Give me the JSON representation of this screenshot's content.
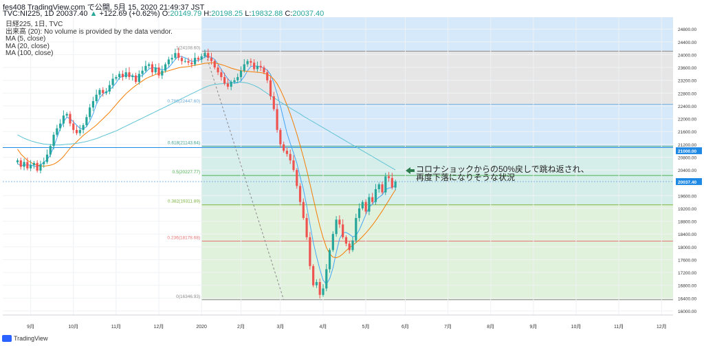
{
  "header": {
    "publish_line": "fes408 TradingView.com で公開, 5月 15, 2020 21:49:37 JST",
    "symbol": "TVC:NI225, 1D",
    "last": "20037.40",
    "change_arrow": "▲",
    "change": "+122.69 (+0.62%)",
    "o_label": "O:",
    "o": "20149.79",
    "h_label": "H:",
    "h": "20198.25",
    "l_label": "L:",
    "l": "19832.88",
    "c_label": "C:",
    "c": "20037.40"
  },
  "legend": [
    "日経225, 1日, TVC",
    "出来高 (20): No volume is provided by the data vendor.",
    "MA (5, close)",
    "MA (20, close)",
    "MA (100, close)"
  ],
  "annotation": {
    "line1": "コロナショックからの50%戻しで跳ね返され、",
    "line2": "再度下落になりそうな状況",
    "arrow_color": "#2e7d4f"
  },
  "footer": {
    "brand": "TradingView"
  },
  "colors": {
    "up": "#26a69a",
    "down": "#ef5350",
    "ma5": "#42a5f5",
    "ma20": "#f57c00",
    "ma100": "#5fc4d4",
    "zone_blue": "#d6e9fb",
    "zone_gray": "#e6e6e6",
    "zone_teal": "#d5eeea",
    "zone_green": "#e1f2dc",
    "zone_red": "#f9d6d6"
  },
  "chart_data": {
    "type": "candlestick",
    "y_ticks": [
      24800,
      24400,
      24000,
      23600,
      23200,
      22800,
      22400,
      22000,
      21600,
      21200,
      20800,
      20400,
      19600,
      19200,
      18800,
      18400,
      18000,
      17600,
      17200,
      16800,
      16400,
      16000
    ],
    "ylim": [
      15870,
      25170
    ],
    "x_ticks": [
      {
        "label": "9月",
        "t": 4
      },
      {
        "label": "10月",
        "t": 17
      },
      {
        "label": "11月",
        "t": 30
      },
      {
        "label": "12月",
        "t": 43
      },
      {
        "label": "2020",
        "t": 56
      },
      {
        "label": "2月",
        "t": 68
      },
      {
        "label": "3月",
        "t": 80
      },
      {
        "label": "4月",
        "t": 93
      },
      {
        "label": "5月",
        "t": 106
      },
      {
        "label": "6月",
        "t": 118
      },
      {
        "label": "7月",
        "t": 131
      },
      {
        "label": "8月",
        "t": 144
      },
      {
        "label": "9月",
        "t": 157
      },
      {
        "label": "10月",
        "t": 170
      },
      {
        "label": "11月",
        "t": 183
      },
      {
        "label": "12月",
        "t": 196
      }
    ],
    "price_tags": [
      {
        "label": "21000.00",
        "value": 21000,
        "color": "#1e88e5"
      },
      {
        "label": "20037.40",
        "value": 20037.4,
        "color": "#1e88e5"
      }
    ],
    "h_levels": [
      21100,
      20037.4
    ],
    "fibonacci": [
      {
        "ratio": "1",
        "label": "1(24108.60)",
        "value": 24108.6
      },
      {
        "ratio": "0.786",
        "label": "0.786(22447.60)",
        "value": 22447.6
      },
      {
        "ratio": "0.618",
        "label": "0.618(21143.64)",
        "value": 21143.64
      },
      {
        "ratio": "0.5",
        "label": "0.5(20227.77)",
        "value": 20227.77
      },
      {
        "ratio": "0.382",
        "label": "0.382(19311.89)",
        "value": 19311.89
      },
      {
        "ratio": "0.236",
        "label": "0.236(18178.68)",
        "value": 18178.68
      },
      {
        "ratio": "0",
        "label": "0(16346.93)",
        "value": 16346.93
      }
    ],
    "fib_range": {
      "t_start": 56,
      "t_end": 196
    },
    "fib_trend": {
      "t1": 57,
      "v1": 24108.6,
      "t2": 81,
      "v2": 16346.93
    },
    "series": [
      {
        "name": "日経225 close",
        "values": [
          20700,
          20500,
          20650,
          20450,
          20550,
          20620,
          20380,
          20580,
          20650,
          20880,
          21150,
          21500,
          21700,
          21850,
          22100,
          22150,
          21850,
          21650,
          21550,
          21650,
          21800,
          22050,
          22350,
          22550,
          22750,
          22900,
          22800,
          22850,
          23050,
          23250,
          23300,
          23400,
          23300,
          23450,
          23300,
          23350,
          23150,
          23400,
          23500,
          23650,
          23700,
          23450,
          23600,
          23350,
          23500,
          23700,
          23850,
          23900,
          24050,
          23900,
          23800,
          23800,
          23750,
          23700,
          23900,
          23850,
          23950,
          24050,
          23900,
          23800,
          23600,
          23450,
          23300,
          23100,
          23000,
          23150,
          23200,
          23300,
          23500,
          23700,
          23800,
          23750,
          23550,
          23650,
          23600,
          23450,
          23200,
          22700,
          22300,
          21650,
          21200,
          21000,
          20900,
          20700,
          20400,
          19900,
          19400,
          18900,
          18300,
          17400,
          16800,
          16900,
          16500,
          16700,
          17300,
          17900,
          18400,
          18850,
          18700,
          18300,
          18100,
          17900,
          18200,
          18900,
          19200,
          19400,
          19100,
          19550,
          19400,
          19800,
          19950,
          19700,
          20200,
          20150,
          19850,
          20037.4
        ]
      },
      {
        "name": "MA (5, close)",
        "values": [
          20600,
          20530,
          20560,
          20550,
          20560,
          20520,
          20500,
          20550,
          20640,
          20720,
          20870,
          21120,
          21400,
          21700,
          21900,
          22050,
          22000,
          21900,
          21800,
          21700,
          21680,
          21750,
          21930,
          22150,
          22450,
          22650,
          22780,
          22830,
          22900,
          23000,
          23120,
          23280,
          23320,
          23360,
          23360,
          23330,
          23300,
          23320,
          23350,
          23450,
          23550,
          23600,
          23590,
          23560,
          23530,
          23540,
          23600,
          23720,
          23850,
          23950,
          23940,
          23900,
          23850,
          23790,
          23800,
          23820,
          23860,
          23930,
          23940,
          23920,
          23850,
          23710,
          23540,
          23390,
          23250,
          23130,
          23110,
          23120,
          23180,
          23320,
          23500,
          23630,
          23650,
          23640,
          23620,
          23580,
          23520,
          23380,
          23120,
          22780,
          22390,
          21980,
          21550,
          21230,
          20930,
          20610,
          20190,
          19800,
          19280,
          18700,
          18140,
          17700,
          17300,
          16960,
          16830,
          17010,
          17340,
          17820,
          18250,
          18440,
          18450,
          18390,
          18310,
          18350,
          18530,
          18760,
          19010,
          19240,
          19330,
          19460,
          19550,
          19620,
          19780,
          19840,
          19850,
          19920
        ]
      },
      {
        "name": "MA (20, close)",
        "values": [
          21050,
          20900,
          20800,
          20700,
          20640,
          20580,
          20550,
          20530,
          20520,
          20530,
          20550,
          20580,
          20640,
          20720,
          20820,
          20950,
          21080,
          21180,
          21280,
          21380,
          21480,
          21560,
          21640,
          21720,
          21800,
          21900,
          22000,
          22100,
          22200,
          22320,
          22440,
          22560,
          22670,
          22780,
          22870,
          22960,
          23040,
          23110,
          23180,
          23250,
          23300,
          23340,
          23380,
          23410,
          23440,
          23470,
          23500,
          23530,
          23560,
          23590,
          23610,
          23620,
          23630,
          23650,
          23670,
          23690,
          23710,
          23730,
          23740,
          23750,
          23740,
          23720,
          23690,
          23660,
          23620,
          23580,
          23550,
          23520,
          23500,
          23490,
          23480,
          23470,
          23460,
          23450,
          23440,
          23420,
          23390,
          23330,
          23230,
          23090,
          22900,
          22680,
          22430,
          22150,
          21850,
          21520,
          21170,
          20800,
          20400,
          19960,
          19510,
          19070,
          18650,
          18280,
          17980,
          17780,
          17680,
          17660,
          17700,
          17780,
          17880,
          17970,
          18050,
          18130,
          18220,
          18320,
          18430,
          18550,
          18680,
          18820,
          18970,
          19120,
          19290,
          19450,
          19620,
          19780
        ]
      },
      {
        "name": "MA (100, close)",
        "values": [
          21500,
          21440,
          21390,
          21350,
          21310,
          21280,
          21250,
          21230,
          21210,
          21200,
          21190,
          21180,
          21180,
          21180,
          21190,
          21200,
          21210,
          21220,
          21230,
          21250,
          21270,
          21290,
          21320,
          21350,
          21380,
          21420,
          21460,
          21500,
          21540,
          21580,
          21620,
          21670,
          21720,
          21770,
          21820,
          21870,
          21920,
          21970,
          22020,
          22070,
          22120,
          22170,
          22220,
          22270,
          22320,
          22370,
          22420,
          22470,
          22520,
          22580,
          22630,
          22680,
          22730,
          22780,
          22830,
          22880,
          22930,
          22980,
          23020,
          23050,
          23070,
          23080,
          23090,
          23100,
          23110,
          23120,
          23130,
          23140,
          23140,
          23130,
          23110,
          23080,
          23040,
          22990,
          22930,
          22860,
          22790,
          22720,
          22650,
          22590,
          22520,
          22460,
          22400,
          22330,
          22270,
          22210,
          22150,
          22080,
          22020,
          21960,
          21900,
          21840,
          21780,
          21720,
          21660,
          21600,
          21540,
          21480,
          21420,
          21360,
          21300,
          21240,
          21180,
          21120,
          21060,
          21000,
          20940,
          20880,
          20820,
          20760,
          20700,
          20640,
          20580,
          20520,
          20460,
          20400
        ]
      }
    ]
  }
}
